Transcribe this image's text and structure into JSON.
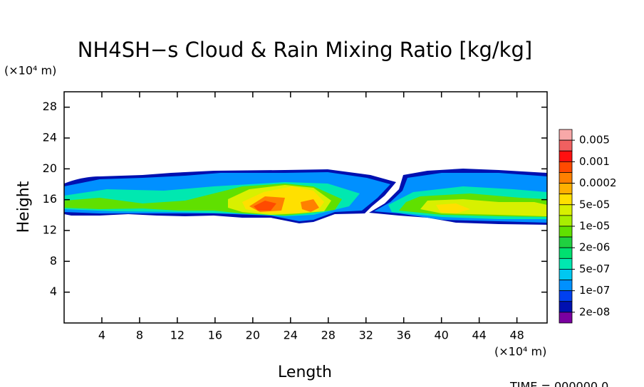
{
  "chart_data": {
    "type": "contour",
    "title": "NH4SH−s Cloud & Rain Mixing Ratio [kg/kg]",
    "x_label": "Length",
    "y_label": "Height",
    "x_unit": "(×10⁴ m)",
    "y_unit": "(×10⁴ m)",
    "footer": "TIME = 000000.0",
    "xlim": [
      0,
      51.2
    ],
    "ylim": [
      0,
      30
    ],
    "xticks": [
      4,
      8,
      12,
      16,
      20,
      24,
      28,
      32,
      36,
      40,
      44,
      48
    ],
    "yticks": [
      4,
      8,
      12,
      16,
      20,
      24,
      28
    ],
    "colorbar": {
      "colors": [
        "#f8a8a8",
        "#f06060",
        "#ff1010",
        "#ff4a00",
        "#ff8000",
        "#ffb000",
        "#ffe000",
        "#d8f000",
        "#a8ee00",
        "#60e000",
        "#20d040",
        "#00e070",
        "#00e8b0",
        "#00c8f0",
        "#0090ff",
        "#0040f0",
        "#0010b0",
        "#7a00a0"
      ],
      "levels": [
        0.005,
        0.001,
        0.0002,
        {
          "value": 5e-05,
          "label": "5e-05"
        },
        {
          "value": 1e-05,
          "label": "1e-05"
        },
        {
          "value": 2e-06,
          "label": "2e-06"
        },
        {
          "value": 5e-07,
          "label": "5e-07"
        },
        {
          "value": 1e-07,
          "label": "1e-07"
        },
        {
          "value": 2e-08,
          "label": "2e-08"
        }
      ]
    }
  }
}
